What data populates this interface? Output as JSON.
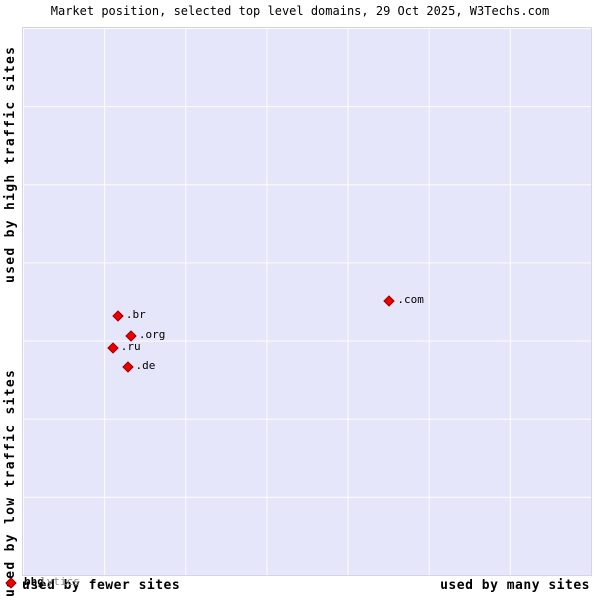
{
  "title": "Market position, selected top level domains, 29 Oct 2025, W3Techs.com",
  "axes": {
    "y_top": "used by high traffic sites",
    "y_bottom": "used by low traffic sites",
    "x_left": "used by fewer sites",
    "x_right": "used by many sites"
  },
  "colors": {
    "plot_background": "#e6e6fa",
    "grid_line": "#ffffff",
    "marker": "#ee0000",
    "marker_border": "#990000",
    "label_text": "#000000"
  },
  "chart_data": {
    "type": "scatter",
    "title": "Market position, selected top level domains, 29 Oct 2025, W3Techs.com",
    "xlabel_left": "used by fewer sites",
    "xlabel_right": "used by many sites",
    "ylabel_top": "used by high traffic sites",
    "ylabel_bottom": "used by low traffic sites",
    "xlim": [
      0,
      1
    ],
    "ylim": [
      0,
      1
    ],
    "grid": true,
    "grid_divisions": 7,
    "legend": false,
    "points": [
      {
        "name": ".com",
        "label": ".com",
        "x": 0.645,
        "y": 0.501
      },
      {
        "name": ".br",
        "label": ".br",
        "x": 0.167,
        "y": 0.474
      },
      {
        "name": ".org",
        "label": ".org",
        "x": 0.19,
        "y": 0.437
      },
      {
        "name": ".ru",
        "label": ".ru",
        "x": 0.158,
        "y": 0.415
      },
      {
        "name": ".de",
        "label": ".de",
        "x": 0.184,
        "y": 0.381
      }
    ],
    "origin_cluster": {
      "x": 0,
      "y": 0,
      "label_primary": "bhg",
      "label_secondary": "lytics",
      "note": "several overlapping point labels at the bottom-left corner"
    }
  }
}
